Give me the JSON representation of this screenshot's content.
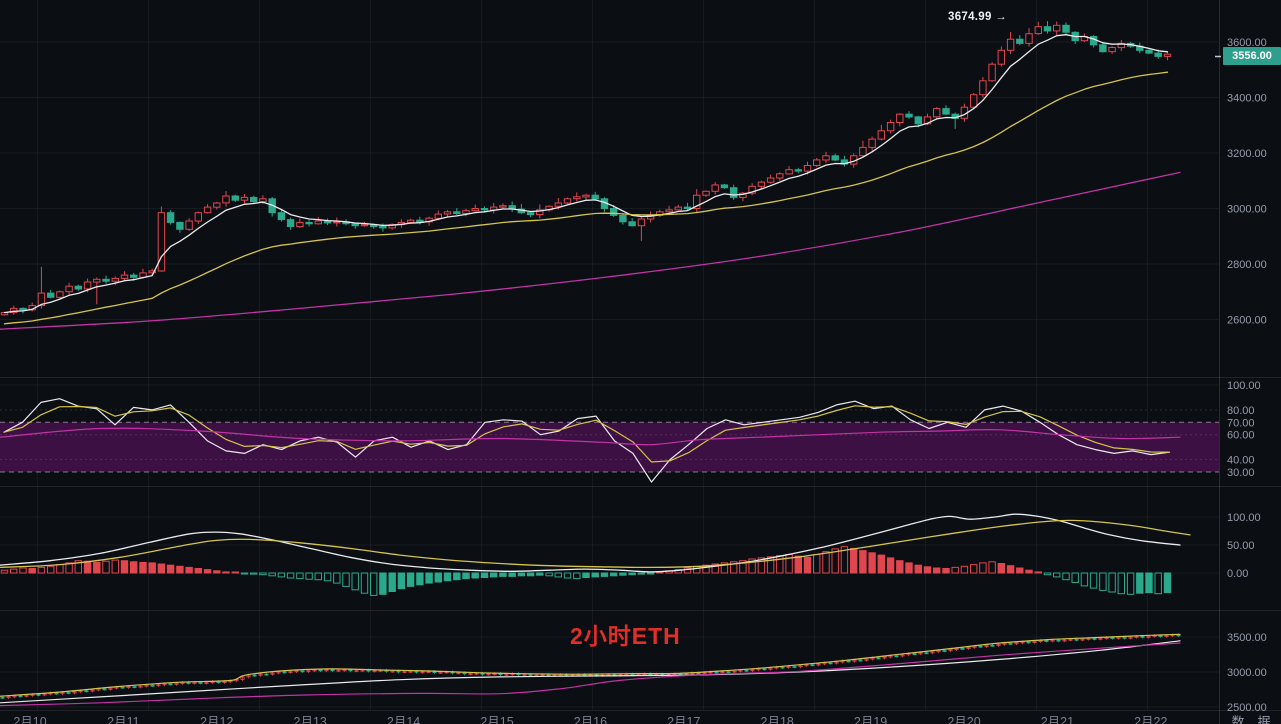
{
  "chart_data": {
    "type": "candlestick",
    "instrument_label": "2小时ETH",
    "symbol": "ETH",
    "timeframe": "2小时",
    "last_price": 3556.0,
    "last_price_label": "3556.00",
    "annotations": {
      "high_text": "3674.99 →",
      "high_value": 3674.99
    },
    "legend_position": "none",
    "grid": true,
    "colors": {
      "background": "#0b0e13",
      "up": "#e0464d",
      "down": "#2aa98c",
      "ma_white": "#eaeaee",
      "ma_yellow": "#d5c44c",
      "ma_magenta": "#c233a6",
      "band": "#3c1042",
      "band_edge": "#d8d2df",
      "badge_bg": "#2d9f8c",
      "axis_text": "#969cab",
      "date_text": "#7a8090",
      "watermark": "#df2f28",
      "grid_line": "rgba(255,255,255,0.05)",
      "separator": "rgba(255,255,255,0.09)"
    },
    "axis": {
      "price_ticks": [
        [
          3600,
          "3600.00"
        ],
        [
          3400,
          "3400.00"
        ],
        [
          3200,
          "3200.00"
        ],
        [
          3000,
          "3000.00"
        ],
        [
          2800,
          "2800.00"
        ],
        [
          2600,
          "2600.00"
        ]
      ],
      "rsi_ticks": [
        [
          100,
          "100.00"
        ],
        [
          80,
          "80.00"
        ],
        [
          70,
          "70.00"
        ],
        [
          60,
          "60.00"
        ],
        [
          40,
          "40.00"
        ],
        [
          30,
          "30.00"
        ]
      ],
      "macd_ticks": [
        [
          100,
          "100.00"
        ],
        [
          50,
          "50.00"
        ],
        [
          0,
          "0.00"
        ]
      ],
      "mini_ticks": [
        [
          3500,
          "3500.00"
        ],
        [
          3000,
          "3000.00"
        ],
        [
          2500,
          "2500.00"
        ]
      ],
      "dates": [
        "2月10",
        "2月11",
        "2月12",
        "2月13",
        "2月14",
        "2月15",
        "2月16",
        "2月17",
        "2月18",
        "2月19",
        "2月20",
        "2月21",
        "2月22"
      ],
      "footer_partial": [
        "数",
        "据"
      ]
    },
    "panels": {
      "price": {
        "ylim": [
          2393,
          3751
        ],
        "closes": [
          2625,
          2640,
          2635,
          2650,
          2695,
          2680,
          2700,
          2720,
          2710,
          2735,
          2745,
          2738,
          2748,
          2760,
          2752,
          2768,
          2775,
          2985,
          2950,
          2925,
          2955,
          2985,
          3005,
          3020,
          3045,
          3030,
          3040,
          3025,
          3035,
          2985,
          2960,
          2935,
          2950,
          2945,
          2955,
          2948,
          2952,
          2945,
          2938,
          2942,
          2935,
          2930,
          2942,
          2950,
          2958,
          2952,
          2965,
          2980,
          2988,
          2982,
          2992,
          3000,
          2995,
          3005,
          3010,
          2998,
          2985,
          2978,
          2995,
          3008,
          3020,
          3035,
          3042,
          3048,
          3035,
          3000,
          2975,
          2952,
          2938,
          2962,
          2975,
          2988,
          2995,
          3005,
          3000,
          3048,
          3062,
          3085,
          3075,
          3040,
          3055,
          3080,
          3095,
          3110,
          3125,
          3140,
          3135,
          3155,
          3175,
          3190,
          3175,
          3160,
          3190,
          3220,
          3250,
          3280,
          3310,
          3340,
          3330,
          3305,
          3330,
          3360,
          3340,
          3325,
          3365,
          3410,
          3460,
          3520,
          3570,
          3610,
          3595,
          3630,
          3655,
          3640,
          3660,
          3635,
          3605,
          3620,
          3590,
          3565,
          3580,
          3595,
          3585,
          3570,
          3560,
          3548,
          3556
        ],
        "wick_overrides": {
          "4": {
            "wu": 95
          },
          "10": {
            "wd": 80
          },
          "17": {
            "wu": 22
          },
          "24": {
            "wu": 18
          },
          "56": {
            "wu": 18
          },
          "58": {
            "wu": 20
          },
          "60": {
            "wu": 18
          },
          "62": {
            "wu": 16
          },
          "69": {
            "wd": 55
          },
          "75": {
            "wu": 22
          },
          "93": {
            "wu": 24
          },
          "95": {
            "wu": 22
          },
          "103": {
            "wd": 38
          },
          "109": {
            "wu": 26
          },
          "111": {
            "wu": 20
          },
          "112": {
            "wu": 18
          },
          "113": {
            "wu": 20
          },
          "114": {
            "wu": 14
          }
        },
        "ma_magenta_keyframes": [
          [
            0,
            2565
          ],
          [
            150,
            2595
          ],
          [
            300,
            2640
          ],
          [
            450,
            2690
          ],
          [
            600,
            2750
          ],
          [
            750,
            2822
          ],
          [
            900,
            2915
          ],
          [
            1050,
            3030
          ],
          [
            1180,
            3130
          ]
        ]
      },
      "rsi": {
        "ylim": [
          18,
          105
        ],
        "band": [
          30,
          70
        ],
        "white": [
          62,
          70,
          86,
          89,
          83,
          81,
          68,
          82,
          80,
          84,
          70,
          55,
          47,
          45,
          52,
          48,
          55,
          58,
          54,
          42,
          55,
          58,
          50,
          55,
          48,
          52,
          70,
          72,
          71,
          60,
          63,
          73,
          75,
          55,
          45,
          22,
          40,
          52,
          65,
          72,
          68,
          70,
          72,
          74,
          78,
          84,
          87,
          81,
          83,
          72,
          65,
          70,
          66,
          80,
          83,
          79,
          70,
          60,
          52,
          48,
          45,
          47,
          44,
          46
        ],
        "magenta_keyframes": [
          [
            0,
            58
          ],
          [
            100,
            65
          ],
          [
            200,
            63
          ],
          [
            300,
            57
          ],
          [
            400,
            55
          ],
          [
            500,
            57
          ],
          [
            600,
            54
          ],
          [
            650,
            52
          ],
          [
            700,
            56
          ],
          [
            760,
            58
          ],
          [
            820,
            60
          ],
          [
            880,
            62
          ],
          [
            940,
            63
          ],
          [
            1000,
            64
          ],
          [
            1060,
            60
          ],
          [
            1120,
            57
          ],
          [
            1180,
            58
          ]
        ]
      },
      "macd": {
        "ylim": [
          -66,
          155
        ],
        "histogram": [
          5,
          7,
          9,
          8,
          10,
          12,
          15,
          18,
          22,
          21,
          19,
          21,
          23,
          22,
          20,
          19,
          18,
          16,
          14,
          12,
          10,
          8,
          6,
          4,
          2,
          1,
          -1,
          -2,
          -3,
          -5,
          -7,
          -9,
          -10,
          -11,
          -12,
          -14,
          -18,
          -24,
          -30,
          -36,
          -40,
          -38,
          -33,
          -28,
          -24,
          -21,
          -18,
          -16,
          -14,
          -12,
          -10,
          -9,
          -8,
          -7,
          -6,
          -6,
          -5,
          -5,
          -4,
          -5,
          -7,
          -9,
          -10,
          -8,
          -7,
          -6,
          -5,
          -4,
          -3,
          -2,
          -1,
          2,
          4,
          6,
          9,
          12,
          14,
          16,
          18,
          20,
          22,
          25,
          27,
          29,
          31,
          33,
          30,
          28,
          33,
          38,
          43,
          47,
          44,
          40,
          36,
          32,
          27,
          22,
          18,
          14,
          11,
          9,
          8,
          10,
          12,
          15,
          18,
          20,
          17,
          13,
          9,
          5,
          2,
          -3,
          -7,
          -12,
          -17,
          -23,
          -27,
          -31,
          -34,
          -37,
          -38,
          -36,
          -35,
          -37,
          -35
        ],
        "white_keyframes": [
          [
            0,
            14
          ],
          [
            50,
            22
          ],
          [
            100,
            35
          ],
          [
            150,
            55
          ],
          [
            190,
            70
          ],
          [
            215,
            73
          ],
          [
            240,
            70
          ],
          [
            270,
            60
          ],
          [
            310,
            44
          ],
          [
            350,
            28
          ],
          [
            390,
            16
          ],
          [
            430,
            9
          ],
          [
            470,
            5
          ],
          [
            510,
            3
          ],
          [
            550,
            5
          ],
          [
            585,
            7
          ],
          [
            620,
            5
          ],
          [
            650,
            2
          ],
          [
            680,
            5
          ],
          [
            710,
            11
          ],
          [
            745,
            19
          ],
          [
            780,
            30
          ],
          [
            820,
            45
          ],
          [
            860,
            63
          ],
          [
            900,
            82
          ],
          [
            930,
            96
          ],
          [
            950,
            101
          ],
          [
            970,
            96
          ],
          [
            995,
            100
          ],
          [
            1015,
            105
          ],
          [
            1035,
            102
          ],
          [
            1060,
            93
          ],
          [
            1085,
            80
          ],
          [
            1110,
            68
          ],
          [
            1140,
            58
          ],
          [
            1180,
            50
          ]
        ],
        "yellow_keyframes": [
          [
            0,
            10
          ],
          [
            60,
            15
          ],
          [
            120,
            28
          ],
          [
            180,
            48
          ],
          [
            215,
            58
          ],
          [
            250,
            60
          ],
          [
            300,
            54
          ],
          [
            350,
            44
          ],
          [
            400,
            32
          ],
          [
            450,
            23
          ],
          [
            500,
            17
          ],
          [
            550,
            13
          ],
          [
            600,
            11
          ],
          [
            650,
            10
          ],
          [
            700,
            12
          ],
          [
            750,
            19
          ],
          [
            800,
            29
          ],
          [
            850,
            42
          ],
          [
            900,
            56
          ],
          [
            950,
            70
          ],
          [
            1000,
            83
          ],
          [
            1040,
            91
          ],
          [
            1070,
            94
          ],
          [
            1100,
            91
          ],
          [
            1135,
            84
          ],
          [
            1165,
            75
          ],
          [
            1190,
            68
          ]
        ]
      },
      "mini": {
        "ylim": [
          2457,
          3886
        ],
        "price_keyframes": [
          [
            0,
            2640
          ],
          [
            60,
            2700
          ],
          [
            120,
            2780
          ],
          [
            180,
            2840
          ],
          [
            230,
            2865
          ],
          [
            245,
            2940
          ],
          [
            280,
            3000
          ],
          [
            330,
            3030
          ],
          [
            380,
            3015
          ],
          [
            430,
            3000
          ],
          [
            480,
            2975
          ],
          [
            530,
            2960
          ],
          [
            580,
            2955
          ],
          [
            630,
            2962
          ],
          [
            680,
            2968
          ],
          [
            720,
            3000
          ],
          [
            760,
            3040
          ],
          [
            800,
            3090
          ],
          [
            850,
            3160
          ],
          [
            900,
            3240
          ],
          [
            950,
            3320
          ],
          [
            1000,
            3400
          ],
          [
            1050,
            3450
          ],
          [
            1100,
            3480
          ],
          [
            1140,
            3505
          ],
          [
            1180,
            3525
          ]
        ],
        "yellow_offset": 14,
        "white_keyframes": [
          [
            0,
            2560
          ],
          [
            100,
            2645
          ],
          [
            200,
            2730
          ],
          [
            300,
            2815
          ],
          [
            400,
            2890
          ],
          [
            500,
            2930
          ],
          [
            600,
            2945
          ],
          [
            700,
            2958
          ],
          [
            800,
            3002
          ],
          [
            900,
            3078
          ],
          [
            1000,
            3180
          ],
          [
            1100,
            3310
          ],
          [
            1180,
            3445
          ]
        ],
        "magenta_keyframes": [
          [
            0,
            2520
          ],
          [
            100,
            2560
          ],
          [
            200,
            2620
          ],
          [
            300,
            2670
          ],
          [
            420,
            2695
          ],
          [
            500,
            2690
          ],
          [
            560,
            2760
          ],
          [
            620,
            2880
          ],
          [
            700,
            2960
          ],
          [
            800,
            3010
          ],
          [
            900,
            3120
          ],
          [
            1000,
            3240
          ],
          [
            1100,
            3340
          ],
          [
            1180,
            3415
          ]
        ]
      }
    }
  }
}
